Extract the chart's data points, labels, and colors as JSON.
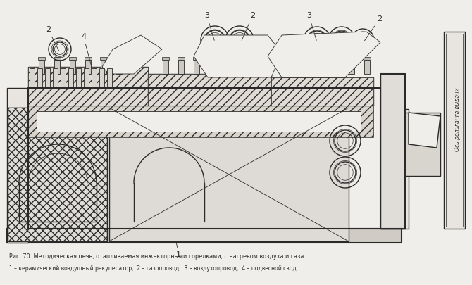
{
  "bg_color": "#f0eeea",
  "line_color": "#2a2a2a",
  "title_line1": "Рис. 70. Методическая печь, отапливаемая инжекторными горелками, с нагревом воздуха и газа:",
  "title_line2": "1 – керамический воздушный рекуператор;  2 – газопровод;  3 – воздухопровод;  4 – подвесной свод",
  "side_text": "Ось рольганга выдачи",
  "label_2a": "2",
  "label_2b": "2",
  "label_2c": "2",
  "label_3a": "3",
  "label_3b": "3",
  "label_4": "4",
  "label_1": "1"
}
